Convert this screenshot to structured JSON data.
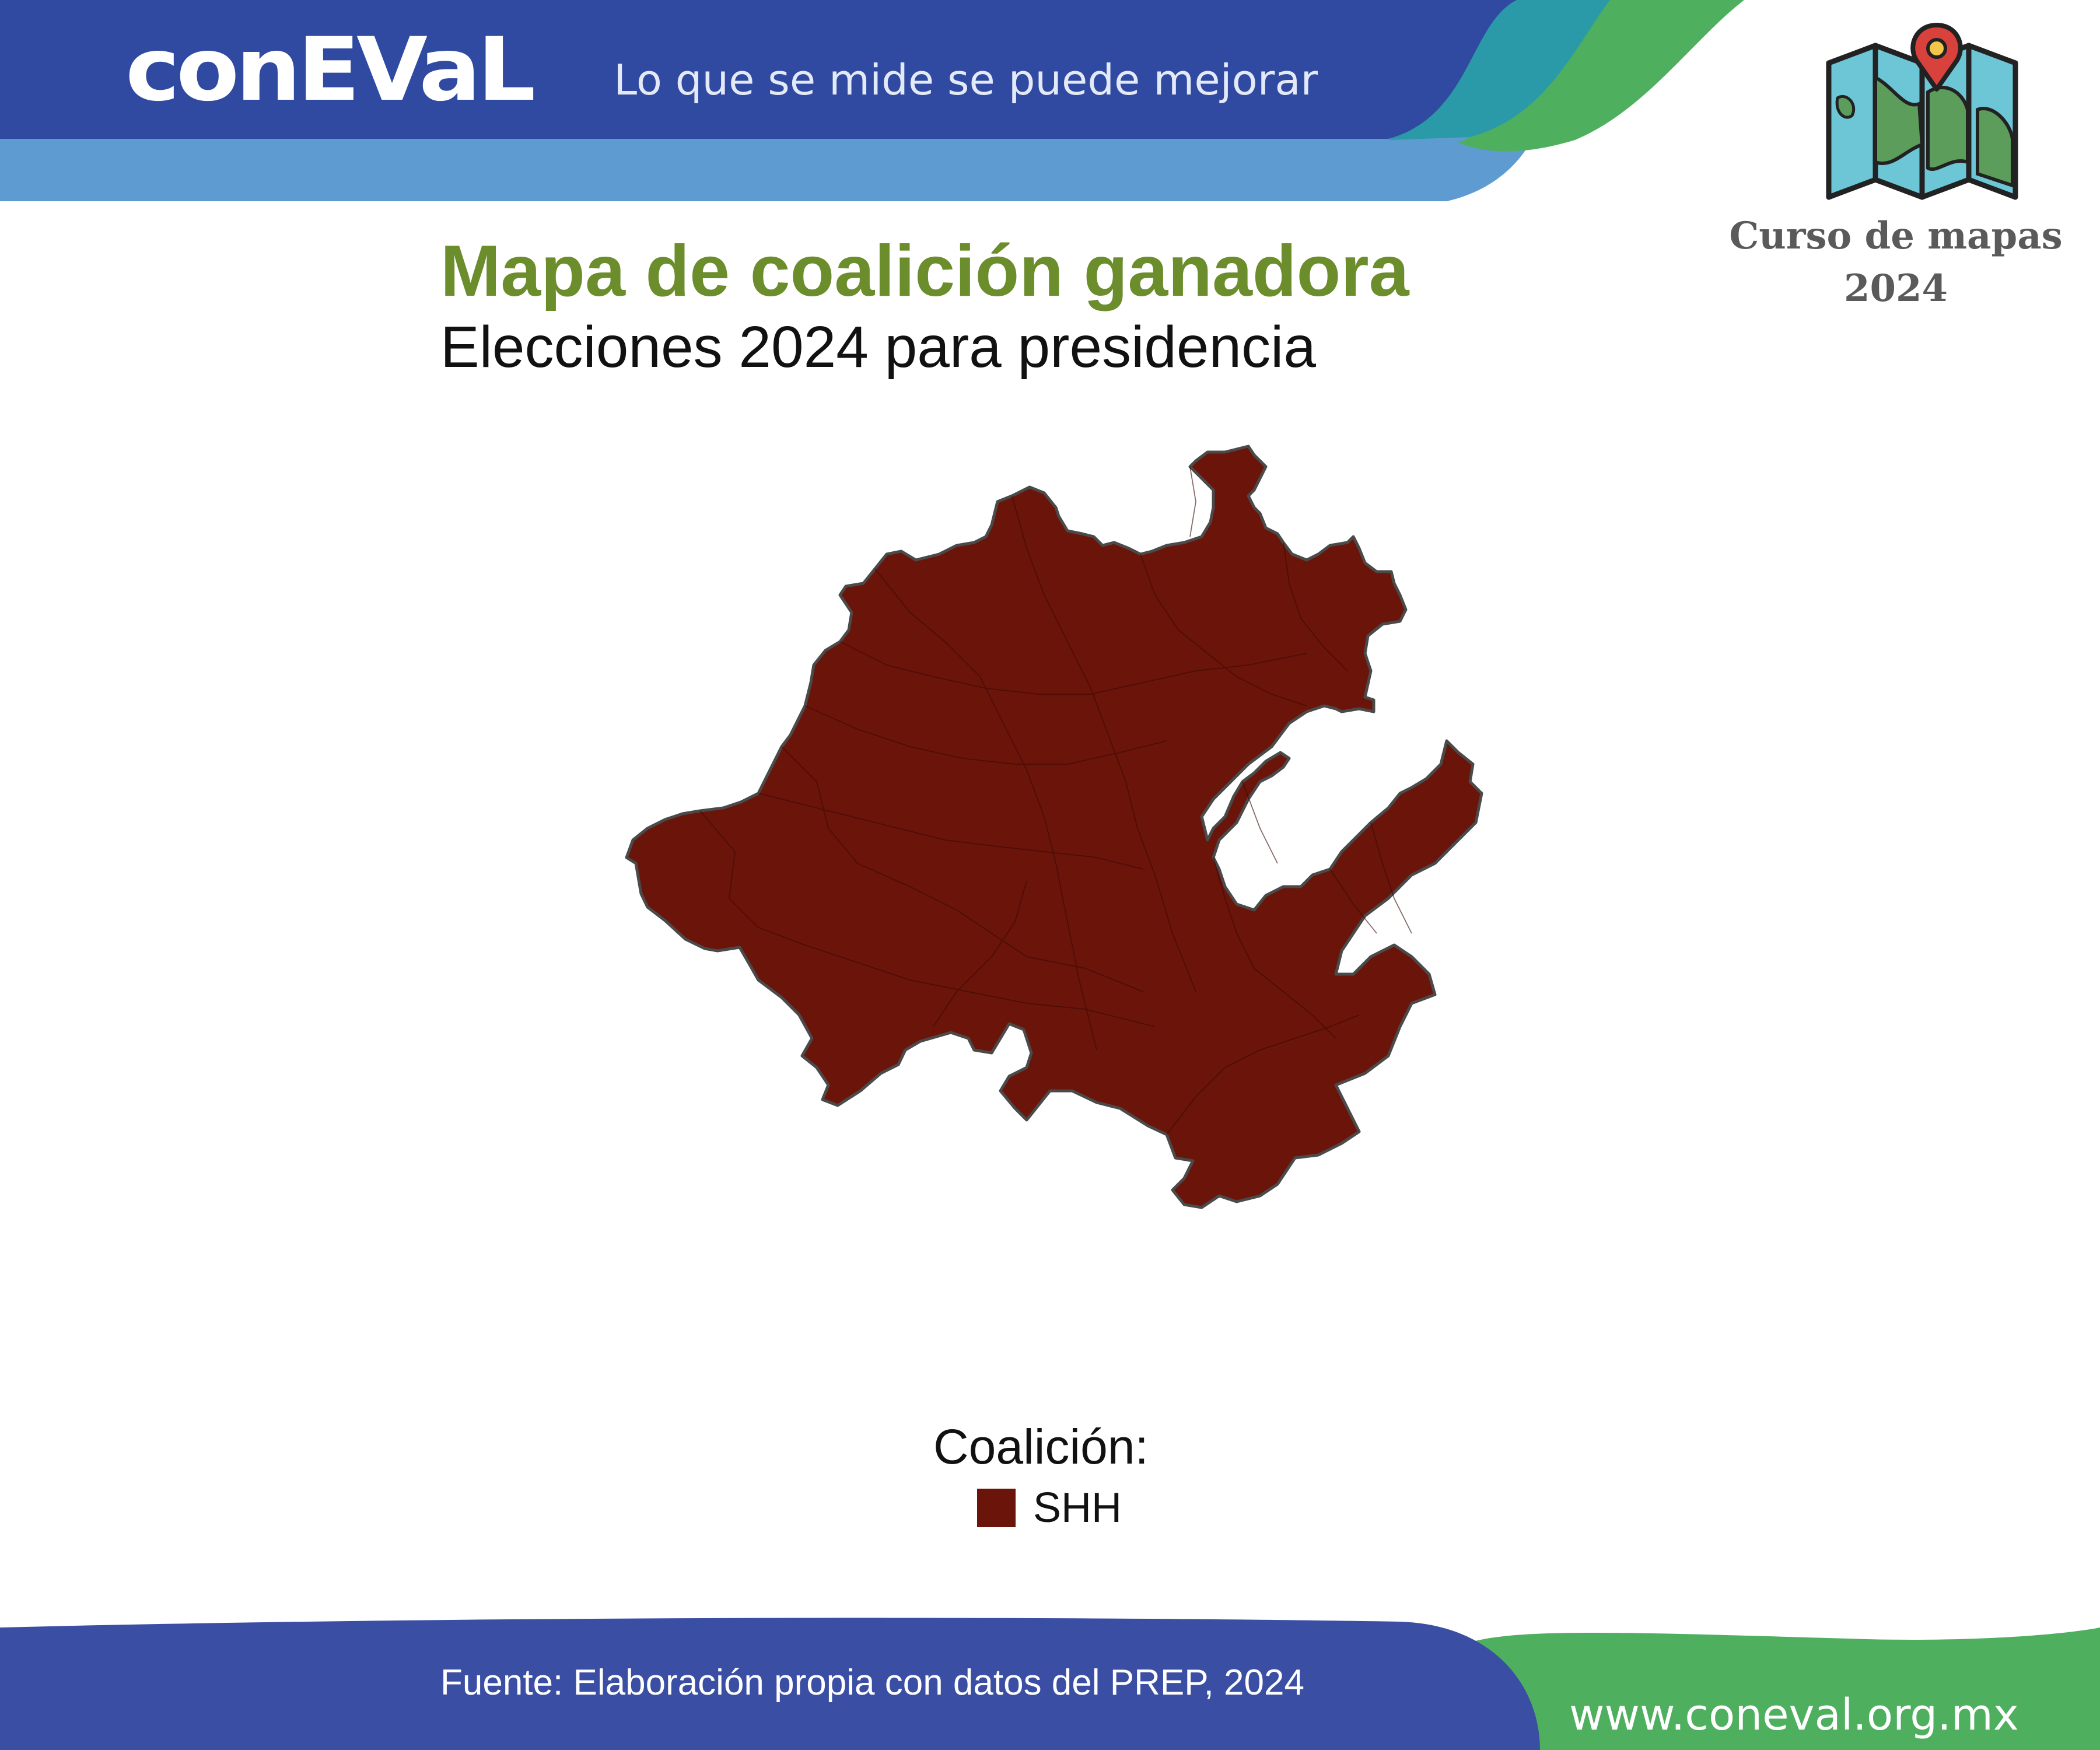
{
  "header": {
    "logo_text": "conEVaL",
    "tagline": "Lo que se mide se puede mejorar",
    "course_label": "Curso de mapas 2024",
    "icon_name": "folded-map-pin-icon"
  },
  "title": "Mapa de coalición ganadora",
  "subtitle": "Elecciones 2024 para presidencia",
  "map_data": {
    "region": "Hidalgo",
    "unit": "municipio",
    "winning_coalition": "SHH",
    "fill_color": "#6b1409",
    "border_color": "#4a4a4a"
  },
  "legend": {
    "title": "Coalición:",
    "items": [
      {
        "label": "SHH",
        "color": "#6b1409"
      }
    ]
  },
  "footer": {
    "source": "Fuente: Elaboración propia con datos del PREP, 2024",
    "website": "www.coneval.org.mx"
  },
  "colors": {
    "header_blue": "#2f4aa0",
    "header_light_blue": "#5d9bd0",
    "header_teal": "#2a9aa8",
    "header_green": "#4eaf5f",
    "title_green": "#6b8d2b",
    "footer_blue": "#3a4ea3",
    "footer_green": "#4eaf5f"
  }
}
